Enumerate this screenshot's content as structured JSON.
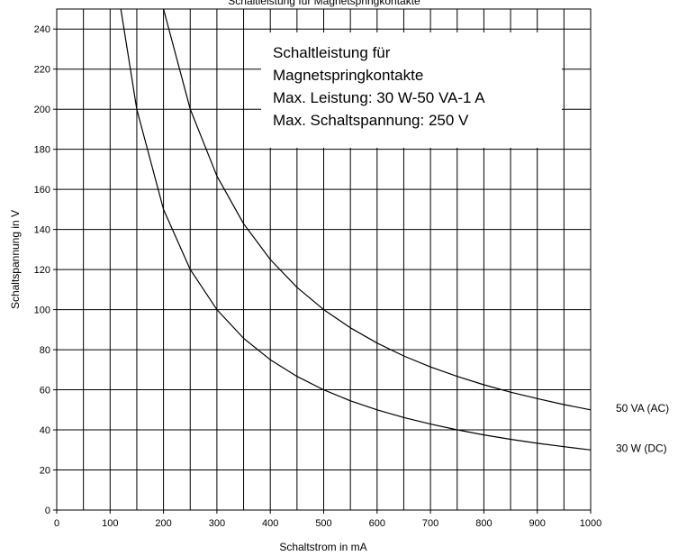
{
  "chart_data": {
    "type": "line",
    "title": "Schaltleistung für Magnetspringkontakte",
    "xlabel": "Schaltstrom in mA",
    "ylabel": "Schaltspannung in V",
    "xlim": [
      0,
      1000
    ],
    "ylim": [
      0,
      250
    ],
    "x_ticks": [
      0,
      100,
      200,
      300,
      400,
      500,
      600,
      700,
      800,
      900,
      1000
    ],
    "y_ticks": [
      0,
      20,
      40,
      60,
      80,
      100,
      120,
      140,
      160,
      180,
      200,
      220,
      240
    ],
    "grid": true,
    "info_box": [
      "Schaltleistung für",
      "Magnetspringkontakte",
      "Max. Leistung: 30 W-50 VA-1 A",
      "Max. Schaltspannung: 250 V"
    ],
    "series": [
      {
        "name": "50 VA (AC)",
        "x": [
          200,
          250,
          300,
          350,
          400,
          450,
          500,
          550,
          600,
          650,
          700,
          750,
          800,
          850,
          900,
          950,
          1000
        ],
        "y": [
          250,
          200,
          166.7,
          142.9,
          125,
          111.1,
          100,
          90.9,
          83.3,
          76.9,
          71.4,
          66.7,
          62.5,
          58.8,
          55.6,
          52.6,
          50
        ]
      },
      {
        "name": "30 W (DC)",
        "x": [
          120,
          150,
          200,
          250,
          300,
          350,
          400,
          450,
          500,
          550,
          600,
          650,
          700,
          750,
          800,
          850,
          900,
          950,
          1000
        ],
        "y": [
          250,
          200,
          150,
          120,
          100,
          85.7,
          75,
          66.7,
          60,
          54.5,
          50,
          46.2,
          42.9,
          40,
          37.5,
          35.3,
          33.3,
          31.6,
          30
        ]
      }
    ]
  }
}
